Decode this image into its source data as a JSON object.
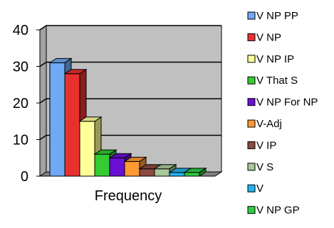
{
  "chart_data": {
    "type": "bar",
    "style": "3d-clustered-column",
    "categories": [
      "Frequency"
    ],
    "series": [
      {
        "name": "V NP PP",
        "values": [
          31
        ],
        "color": "#6fa8f5"
      },
      {
        "name": "V NP",
        "values": [
          28
        ],
        "color": "#e8312f"
      },
      {
        "name": "V NP IP",
        "values": [
          15
        ],
        "color": "#ffff99"
      },
      {
        "name": "V That S",
        "values": [
          6
        ],
        "color": "#33cc33"
      },
      {
        "name": "V NP For NP",
        "values": [
          5
        ],
        "color": "#6a0fd6"
      },
      {
        "name": "V-Adj",
        "values": [
          4
        ],
        "color": "#ff9933"
      },
      {
        "name": "V IP",
        "values": [
          2
        ],
        "color": "#8b4a3f"
      },
      {
        "name": "V S",
        "values": [
          2
        ],
        "color": "#a9c89a"
      },
      {
        "name": "V",
        "values": [
          1
        ],
        "color": "#22b5f0"
      },
      {
        "name": "V NP GP",
        "values": [
          1
        ],
        "color": "#2ecc40"
      }
    ],
    "y_ticks": [
      "0",
      "10",
      "20",
      "30",
      "40"
    ],
    "ylim": [
      0,
      40
    ],
    "grid": true,
    "legend_position": "right",
    "colors": {
      "wall": "#c0c0c0",
      "floor": "#808080",
      "gridline": "#000000"
    }
  }
}
